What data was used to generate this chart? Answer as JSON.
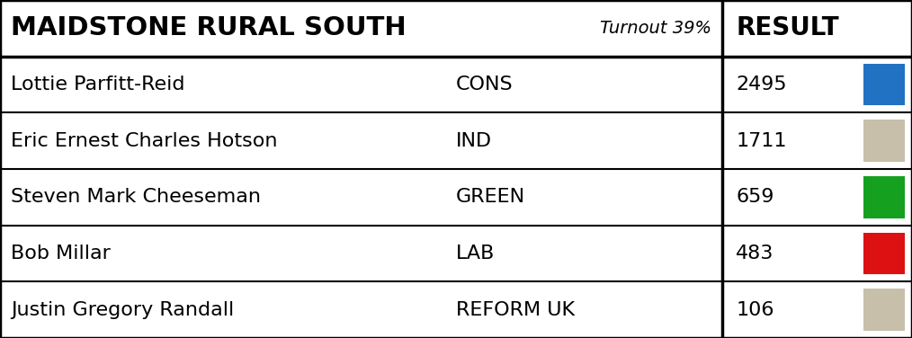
{
  "title": "MAIDSTONE RURAL SOUTH",
  "turnout": "Turnout 39%",
  "result_label": "RESULT",
  "candidates": [
    {
      "name": "Lottie Parfitt-Reid",
      "party": "CONS",
      "votes": "2495",
      "color": "#2272c3"
    },
    {
      "name": "Eric Ernest Charles Hotson",
      "party": "IND",
      "votes": "1711",
      "color": "#c8bfaa"
    },
    {
      "name": "Steven Mark Cheeseman",
      "party": "GREEN",
      "votes": "659",
      "color": "#15a020"
    },
    {
      "name": "Bob Millar",
      "party": "LAB",
      "votes": "483",
      "color": "#dd1111"
    },
    {
      "name": "Justin Gregory Randall",
      "party": "REFORM UK",
      "votes": "106",
      "color": "#c8bfaa"
    }
  ],
  "bg_color": "#ffffff",
  "border_color": "#000000",
  "text_color": "#000000",
  "col_div": 0.792,
  "figsize": [
    10.14,
    3.76
  ],
  "dpi": 100,
  "title_fontsize": 21,
  "turnout_fontsize": 14,
  "result_fontsize": 20,
  "row_fontsize": 16,
  "border_lw": 2.5,
  "div_lw": 2.5,
  "row_lw": 1.5
}
